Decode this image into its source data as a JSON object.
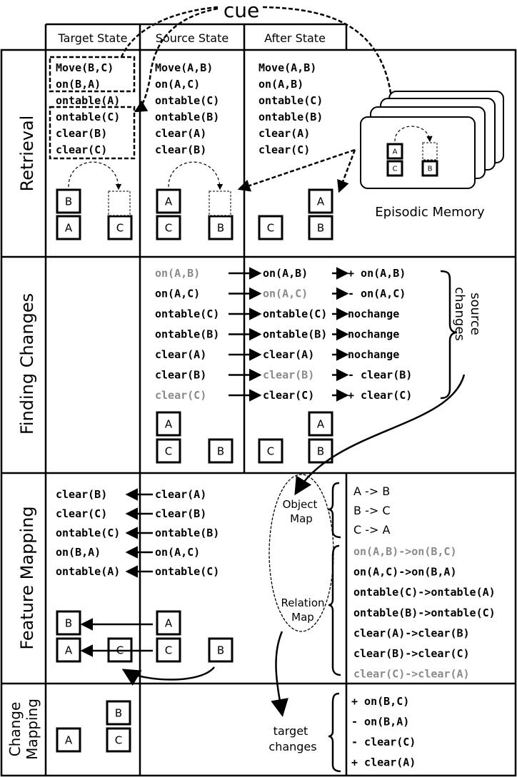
{
  "cue_label": "cue",
  "columns": [
    "Target State",
    "Source State",
    "After State"
  ],
  "rows": [
    "Retrieval",
    "Finding Changes",
    "Feature Mapping",
    "Change Mapping"
  ],
  "retrieval": {
    "target": [
      "Move(B,C)",
      "on(B,A)",
      "ontable(A)",
      "ontable(C)",
      "clear(B)",
      "clear(C)"
    ],
    "source": [
      "Move(A,B)",
      "on(A,C)",
      "ontable(C)",
      "ontable(B)",
      "clear(A)",
      "clear(B)"
    ],
    "after": [
      "Move(A,B)",
      "on(A,B)",
      "ontable(C)",
      "ontable(B)",
      "clear(A)",
      "clear(C)"
    ],
    "episodic_memory_label": "Episodic Memory"
  },
  "finding_changes": {
    "source": [
      {
        "t": "on(A,B)",
        "gray": true
      },
      {
        "t": "on(A,C)"
      },
      {
        "t": "ontable(C)"
      },
      {
        "t": "ontable(B)"
      },
      {
        "t": "clear(A)"
      },
      {
        "t": "clear(B)"
      },
      {
        "t": "clear(C)",
        "gray": true
      }
    ],
    "after": [
      {
        "t": "on(A,B)"
      },
      {
        "t": "on(A,C)",
        "gray": true
      },
      {
        "t": "ontable(C)"
      },
      {
        "t": "ontable(B)"
      },
      {
        "t": "clear(A)"
      },
      {
        "t": "clear(B)",
        "gray": true
      },
      {
        "t": "clear(C)"
      }
    ],
    "changes": [
      "+ on(A,B)",
      "- on(A,C)",
      "nochange",
      "nochange",
      "nochange",
      "- clear(B)",
      "+ clear(C)"
    ],
    "brace_label": [
      "source",
      "changes"
    ]
  },
  "feature_mapping": {
    "target": [
      "clear(B)",
      "clear(C)",
      "ontable(C)",
      "on(B,A)",
      "ontable(A)"
    ],
    "source": [
      "clear(A)",
      "clear(B)",
      "ontable(B)",
      "on(A,C)",
      "ontable(C)"
    ],
    "object_map_label": [
      "Object",
      "Map"
    ],
    "relation_map_label": [
      "Relation",
      "Map"
    ],
    "object_map": [
      "A -> B",
      "B -> C",
      "C -> A"
    ],
    "relation_map": [
      {
        "t": "on(A,B)->on(B,C)",
        "gray": true
      },
      {
        "t": "on(A,C)->on(B,A)"
      },
      {
        "t": "ontable(C)->ontable(A)"
      },
      {
        "t": "ontable(B)->ontable(C)"
      },
      {
        "t": "clear(A)->clear(B)"
      },
      {
        "t": "clear(B)->clear(C)"
      },
      {
        "t": "clear(C)->clear(A)",
        "gray": true
      }
    ]
  },
  "change_mapping": {
    "target_changes_label": [
      "target",
      "changes"
    ],
    "changes": [
      "+ on(B,C)",
      "- on(B,A)",
      "- clear(C)",
      "+ clear(A)"
    ]
  },
  "blocks": {
    "A": "A",
    "B": "B",
    "C": "C"
  },
  "colors": {
    "gray_text": "#8a8a8a",
    "line": "#000000"
  }
}
